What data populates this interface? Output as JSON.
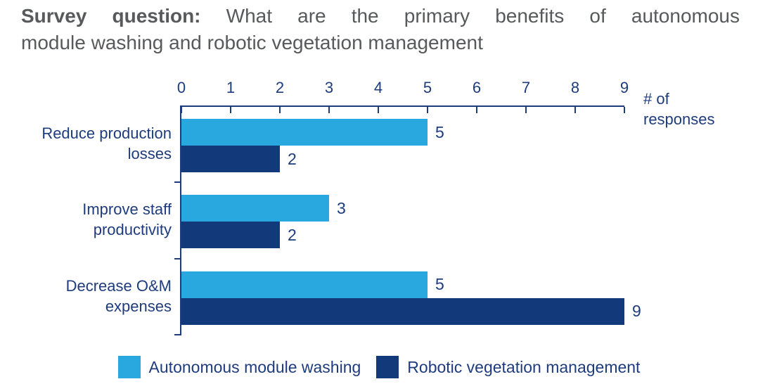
{
  "title": {
    "bold": "Survey question:",
    "line1_rest": "What are the primary benefits of autonomous",
    "line2": "module washing and robotic vegetation management"
  },
  "axis": {
    "title_line1": "# of",
    "title_line2": "responses"
  },
  "chart_data": {
    "type": "bar",
    "orientation": "horizontal",
    "title": "Survey question: What are the primary benefits of autonomous module washing and robotic vegetation management",
    "categories": [
      "Reduce production losses",
      "Improve staff productivity",
      "Decrease O&M expenses"
    ],
    "categories_lines": [
      [
        "Reduce production",
        "losses"
      ],
      [
        "Improve staff",
        "productivity"
      ],
      [
        "Decrease O&M",
        "expenses"
      ]
    ],
    "series": [
      {
        "name": "Autonomous module washing",
        "color": "#29A8E0",
        "values": [
          5,
          3,
          5
        ]
      },
      {
        "name": "Robotic vegetation management",
        "color": "#123A7B",
        "values": [
          2,
          2,
          9
        ]
      }
    ],
    "xlabel": "# of responses",
    "xlim": [
      0,
      9
    ],
    "x_ticks": [
      "0",
      "1",
      "2",
      "3",
      "4",
      "5",
      "6",
      "7",
      "8",
      "9"
    ],
    "grid": false,
    "legend_position": "bottom",
    "value_labels_shown": true
  },
  "legend": {
    "items": [
      {
        "label": "Autonomous module washing",
        "color": "#29A8E0"
      },
      {
        "label": "Robotic vegetation management",
        "color": "#123A7B"
      }
    ]
  },
  "colors": {
    "series-light": "#29A8E0",
    "series-dark": "#123A7B",
    "text-navy": "#1E3C7D",
    "axis-line": "#1E3C7D",
    "title-gray": "#58595B",
    "background": "#FFFFFF"
  }
}
